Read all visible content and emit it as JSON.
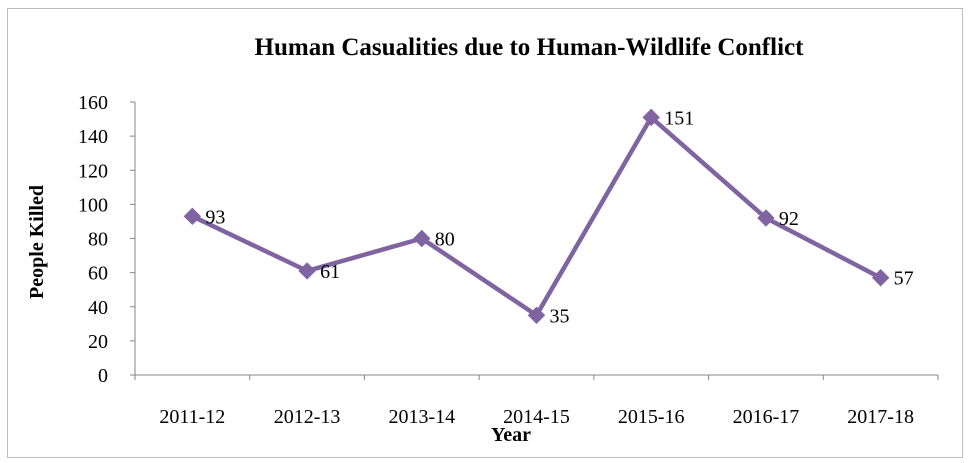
{
  "chart_data": {
    "type": "line",
    "title": "Human Casualities due to Human-Wildlife Conflict",
    "xlabel": "Year",
    "ylabel": "People Killed",
    "categories": [
      "2011-12",
      "2012-13",
      "2013-14",
      "2014-15",
      "2015-16",
      "2016-17",
      "2017-18"
    ],
    "series": [
      {
        "values": [
          93,
          61,
          80,
          35,
          151,
          92,
          57
        ],
        "color": "#8064a2"
      }
    ],
    "data_labels": [
      "93",
      "61",
      "80",
      "35",
      "151",
      "92",
      "57"
    ],
    "ylim": [
      0,
      160
    ],
    "yticks": [
      0,
      20,
      40,
      60,
      80,
      100,
      120,
      140,
      160
    ],
    "ytick_labels": [
      "0",
      "20",
      "40",
      "60",
      "80",
      "100",
      "120",
      "140",
      "160"
    ],
    "grid": false,
    "legend": "none",
    "marker": "diamond"
  }
}
